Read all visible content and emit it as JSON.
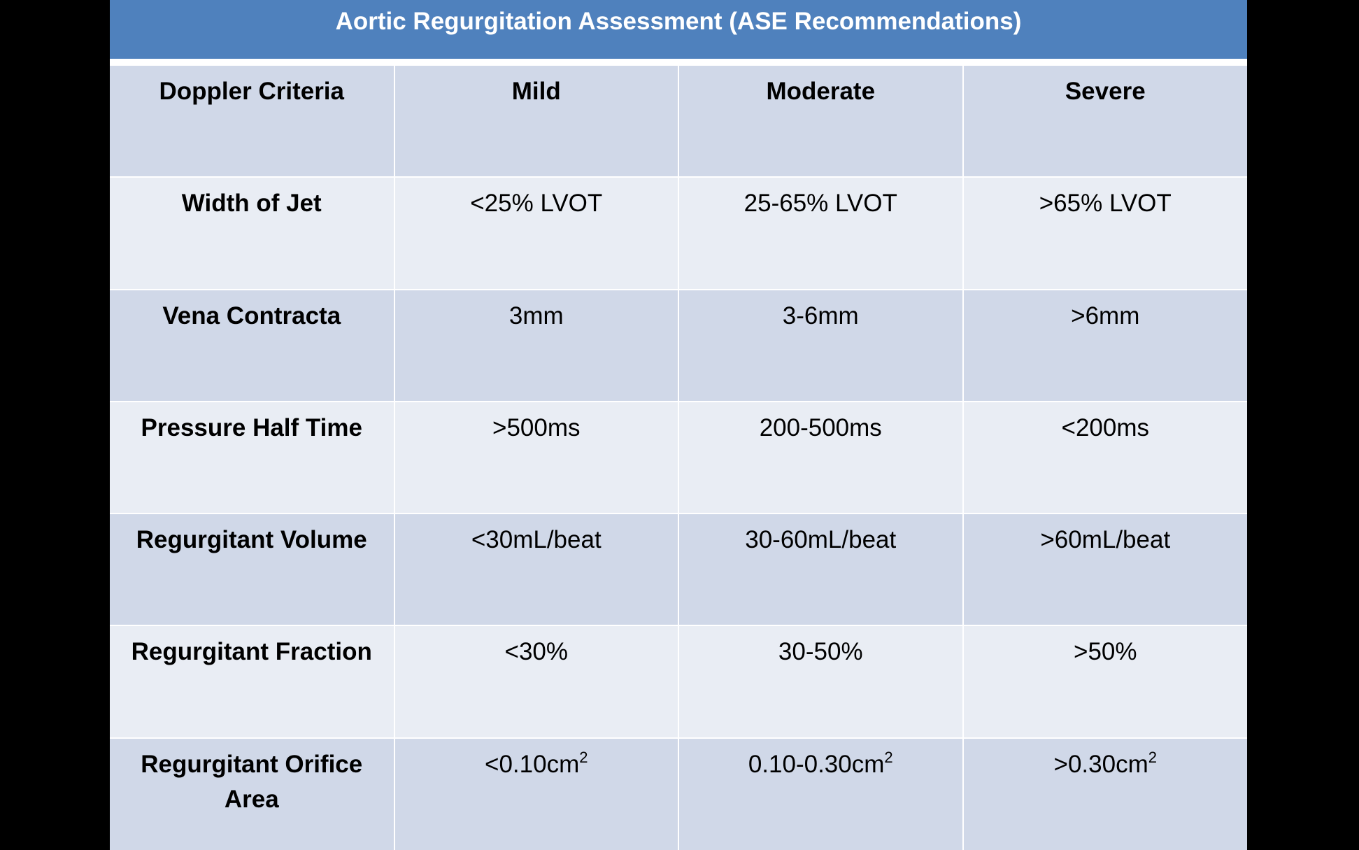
{
  "title": "Aortic Regurgitation Assessment (ASE Recommendations)",
  "header": [
    "Doppler Criteria",
    "Mild",
    "Moderate",
    "Severe"
  ],
  "rows": [
    {
      "criterion": "Width of Jet",
      "mild": "<25% LVOT",
      "moderate": "25-65% LVOT",
      "severe": ">65% LVOT"
    },
    {
      "criterion": "Vena Contracta",
      "mild": "3mm",
      "moderate": "3-6mm",
      "severe": ">6mm"
    },
    {
      "criterion": "Pressure Half Time",
      "mild": ">500ms",
      "moderate": "200-500ms",
      "severe": "<200ms"
    },
    {
      "criterion": "Regurgitant Volume",
      "mild": "<30mL/beat",
      "moderate": "30-60mL/beat",
      "severe": ">60mL/beat"
    },
    {
      "criterion": "Regurgitant Fraction",
      "mild": "<30%",
      "moderate": "30-50%",
      "severe": ">50%"
    },
    {
      "criterion": "Regurgitant Orifice Area",
      "mild": "<0.10cm",
      "moderate": "0.10-0.30cm",
      "severe": ">0.30cm"
    }
  ],
  "area_unit_superscript": "2",
  "colors": {
    "title_bar": "#4f81bd",
    "row_dark": "#d0d8e8",
    "row_light": "#e9edf4",
    "background": "#000000"
  }
}
